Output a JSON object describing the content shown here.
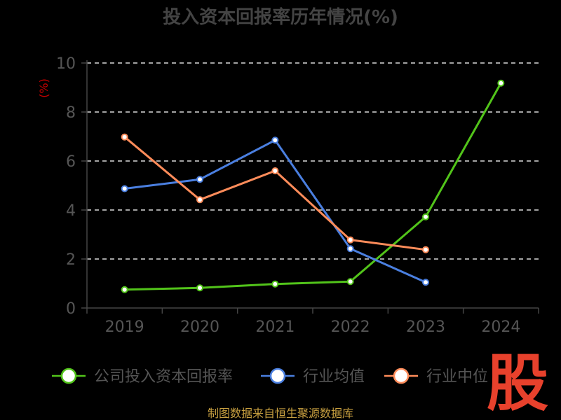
{
  "chart_data": {
    "type": "line",
    "title": "投入资本回报率历年情况(%)",
    "ylabel": "(%)",
    "ylim": [
      0,
      10
    ],
    "yticks": [
      "0",
      "2",
      "4",
      "6",
      "8",
      "10"
    ],
    "categories": [
      "2019",
      "2020",
      "2021",
      "2022",
      "2023",
      "2024"
    ],
    "grid": true,
    "legend_position": "bottom",
    "series": [
      {
        "name": "公司投入资本回报率",
        "color": "#52c41a",
        "values": [
          0.75,
          0.82,
          0.98,
          1.08,
          3.72,
          9.18
        ]
      },
      {
        "name": "行业均值",
        "color": "#4a7fe0",
        "values": [
          4.87,
          5.25,
          6.85,
          2.42,
          1.05,
          null
        ]
      },
      {
        "name": "行业中位",
        "color": "#ff8c5a",
        "values": [
          6.98,
          4.42,
          5.6,
          2.78,
          2.38,
          null
        ]
      }
    ]
  },
  "footer": {
    "source": "制图数据来自恒生聚源数据库"
  },
  "watermark": {
    "text": "股"
  }
}
